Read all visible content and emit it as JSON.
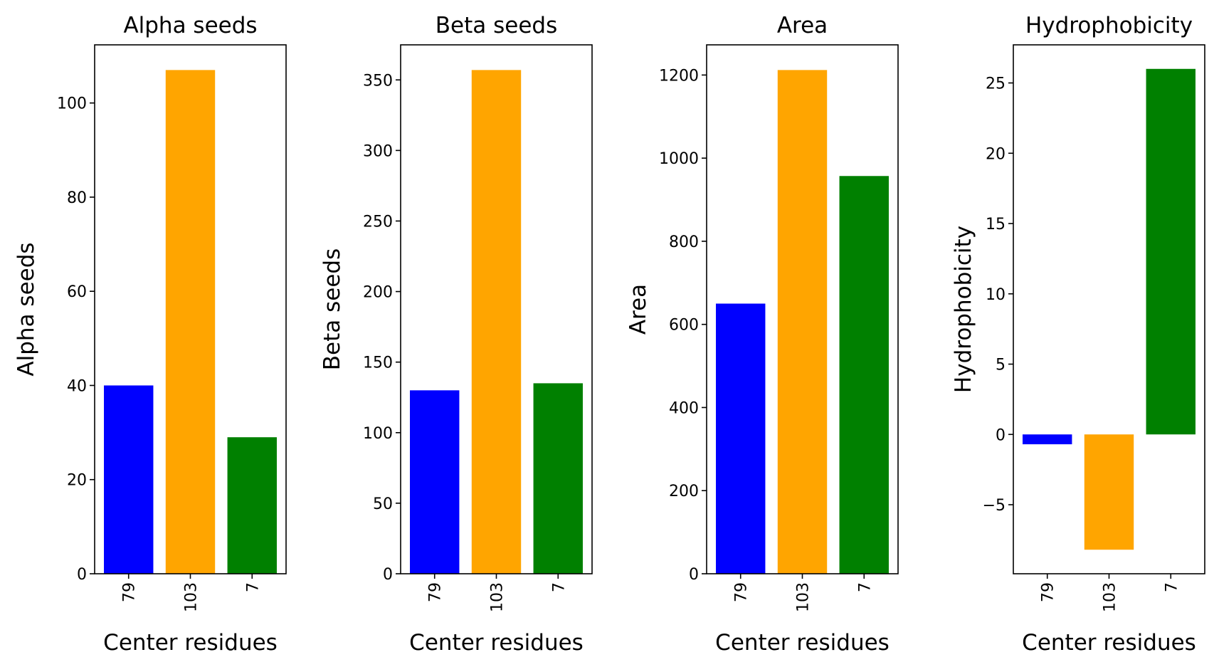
{
  "chart_data": [
    {
      "type": "bar",
      "title": "Alpha seeds",
      "xlabel": "Center residues",
      "ylabel": "Alpha seeds",
      "categories": [
        "79",
        "103",
        "7"
      ],
      "values": [
        40,
        107,
        29
      ],
      "colors": [
        "#0000ff",
        "#ffa500",
        "#008000"
      ],
      "ylim": [
        0,
        112.35
      ],
      "yticks": [
        0,
        20,
        40,
        60,
        80,
        100
      ],
      "ytick_labels": [
        "0",
        "20",
        "40",
        "60",
        "80",
        "100"
      ],
      "grid": false
    },
    {
      "type": "bar",
      "title": "Beta seeds",
      "xlabel": "Center residues",
      "ylabel": "Beta seeds",
      "categories": [
        "79",
        "103",
        "7"
      ],
      "values": [
        130,
        357,
        135
      ],
      "colors": [
        "#0000ff",
        "#ffa500",
        "#008000"
      ],
      "ylim": [
        0,
        374.85
      ],
      "yticks": [
        0,
        50,
        100,
        150,
        200,
        250,
        300,
        350
      ],
      "ytick_labels": [
        "0",
        "50",
        "100",
        "150",
        "200",
        "250",
        "300",
        "350"
      ],
      "grid": false
    },
    {
      "type": "bar",
      "title": "Area",
      "xlabel": "Center residues",
      "ylabel": "Area",
      "categories": [
        "79",
        "103",
        "7"
      ],
      "values": [
        650,
        1212,
        957
      ],
      "colors": [
        "#0000ff",
        "#ffa500",
        "#008000"
      ],
      "ylim": [
        0,
        1272.6
      ],
      "yticks": [
        0,
        200,
        400,
        600,
        800,
        1000,
        1200
      ],
      "ytick_labels": [
        "0",
        "200",
        "400",
        "600",
        "800",
        "1000",
        "1200"
      ],
      "grid": false
    },
    {
      "type": "bar",
      "title": "Hydrophobicity",
      "xlabel": "Center residues",
      "ylabel": "Hydrophobicity",
      "categories": [
        "79",
        "103",
        "7"
      ],
      "values": [
        -0.7,
        -8.2,
        26.0
      ],
      "colors": [
        "#0000ff",
        "#ffa500",
        "#008000"
      ],
      "ylim": [
        -9.91,
        27.71
      ],
      "yticks": [
        -5,
        0,
        5,
        10,
        15,
        20,
        25
      ],
      "ytick_labels": [
        "−5",
        "0",
        "5",
        "10",
        "15",
        "20",
        "25"
      ],
      "grid": false
    }
  ]
}
